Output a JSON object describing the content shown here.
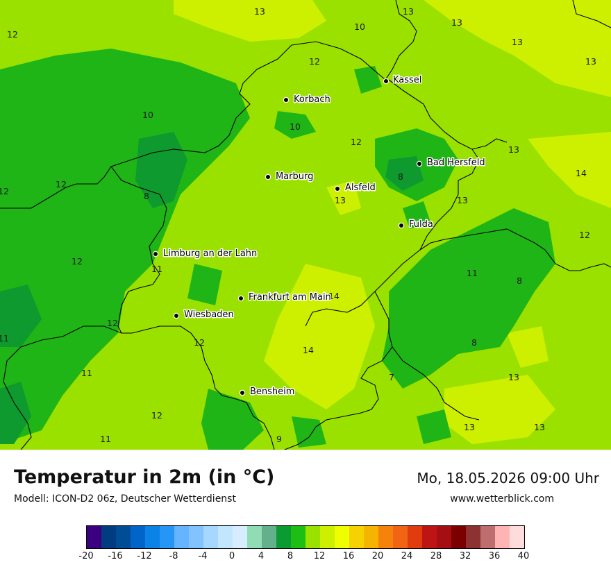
{
  "title": "Temperatur in 2m (in °C)",
  "subtitle": "Modell: ICON-D2 06z, Deutscher Wetterdienst",
  "datetime": "Mo, 18.05.2026 09:00 Uhr",
  "website": "www.wetterblick.com",
  "colors": {
    "base_12": "#9be100",
    "warm_14": "#cdf000",
    "cool_10": "#1fb516",
    "cold_8": "#0e9a2e",
    "border": "#000000"
  },
  "cities": [
    {
      "name": "Kassel"
    },
    {
      "name": "Korbach"
    },
    {
      "name": "Bad Hersfeld"
    },
    {
      "name": "Marburg"
    },
    {
      "name": "Alsfeld"
    },
    {
      "name": "Fulda"
    },
    {
      "name": "Limburg an der Lahn"
    },
    {
      "name": "Frankfurt am Main"
    },
    {
      "name": "Wiesbaden"
    },
    {
      "name": "Bensheim"
    }
  ],
  "value_labels": [
    "13",
    "13",
    "12",
    "10",
    "13",
    "13",
    "12",
    "13",
    "10",
    "10",
    "12",
    "13",
    "14",
    "12",
    "8",
    "8",
    "13",
    "13",
    "12",
    "12",
    "12",
    "11",
    "11",
    "8",
    "14",
    "11",
    "12",
    "12",
    "8",
    "11",
    "7",
    "13",
    "12",
    "11",
    "13",
    "13",
    "9",
    "14"
  ],
  "legend": {
    "colors": [
      "#3a0080",
      "#003c7f",
      "#004d95",
      "#0064c8",
      "#0a82e6",
      "#2596f5",
      "#64b4ff",
      "#82c3ff",
      "#a5d7ff",
      "#c3e6ff",
      "#d7ecff",
      "#91dcb4",
      "#64af8c",
      "#0a9b32",
      "#1ebe14",
      "#9be100",
      "#cdf000",
      "#eeff00",
      "#f5d200",
      "#f5b400",
      "#f5820a",
      "#f06414",
      "#e13c0f",
      "#be1414",
      "#a50f14",
      "#7d0000",
      "#8c3232",
      "#be6e6e",
      "#ffb4b4",
      "#ffdcdc"
    ],
    "ticks": [
      "-20",
      "-16",
      "-12",
      "-8",
      "-4",
      "0",
      "4",
      "8",
      "12",
      "16",
      "20",
      "24",
      "28",
      "32",
      "36",
      "40"
    ]
  }
}
